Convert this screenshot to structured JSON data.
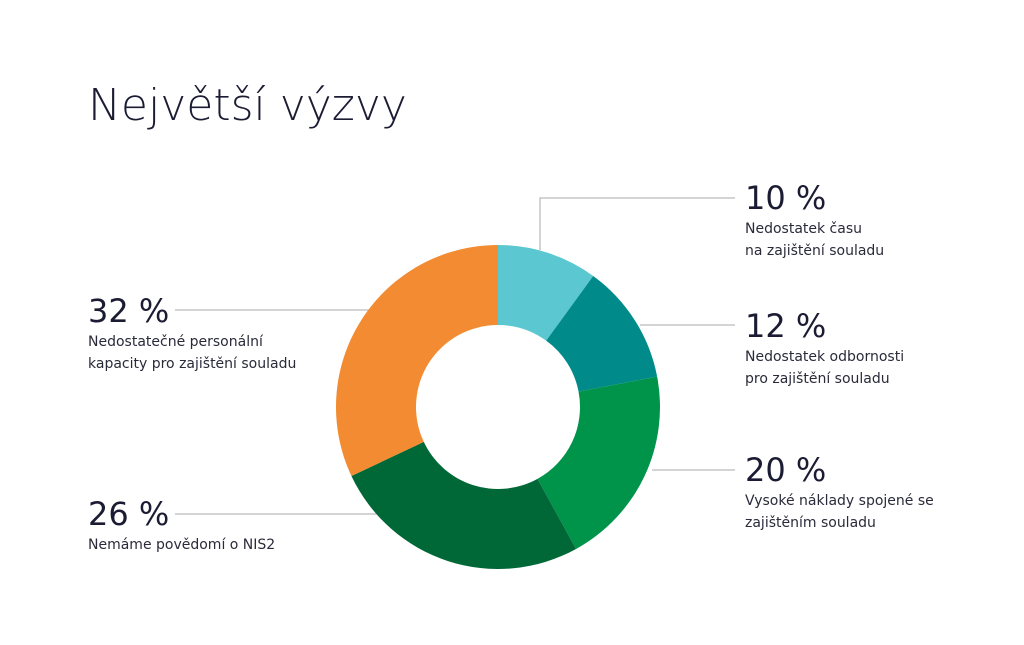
{
  "chart_data": {
    "type": "donut",
    "title": "Největší výzvy",
    "categories": [
      "Nedostatek času\nna zajištění souladu",
      "Nedostatek odbornosti\npro zajištění souladu",
      "Vysoké náklady spojené se\nzajištěním souladu",
      "Nemáme povědomí o NIS2",
      "Nedostatečné personální\nkapacity pro zajištění souladu"
    ],
    "values": [
      10,
      12,
      20,
      26,
      32
    ],
    "value_labels": [
      "10 %",
      "12 %",
      "20 %",
      "26 %",
      "32 %"
    ],
    "colors": [
      "#5bc7d1",
      "#008b8a",
      "#00934a",
      "#006837",
      "#f28b31"
    ]
  }
}
